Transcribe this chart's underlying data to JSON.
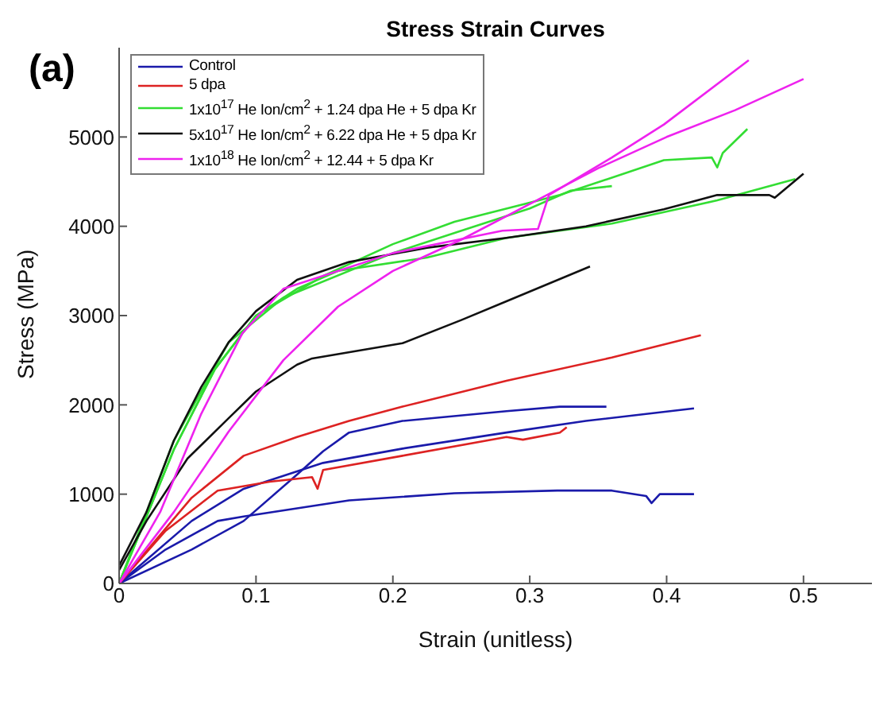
{
  "chart_data": {
    "type": "line",
    "title": "Stress Strain Curves",
    "xlabel": "Strain (unitless)",
    "ylabel": "Stress (MPa)",
    "annotations": [
      "(a)"
    ],
    "xlim": [
      0,
      0.55
    ],
    "xticks": [
      0,
      0.1,
      0.2,
      0.3,
      0.4,
      0.5
    ],
    "ylim": [
      0,
      6000
    ],
    "yticks": [
      0,
      1000,
      2000,
      3000,
      4000,
      5000
    ],
    "grid": false,
    "legend": "top left",
    "marker": "none",
    "line_style": "solid",
    "series": [
      {
        "name": "Control",
        "color": "#1a1aaa",
        "x": [
          0,
          0.034,
          0.072,
          0.091,
          0.168,
          0.245,
          0.32,
          0.36,
          0.385,
          0.389,
          0.395,
          0.42
        ],
        "values": [
          0,
          380,
          700,
          750,
          930,
          1010,
          1040,
          1040,
          980,
          900,
          1000,
          1000
        ]
      },
      {
        "color": "#1a1aaa",
        "x": [
          0,
          0.053,
          0.091,
          0.149,
          0.207,
          0.283,
          0.341,
          0.42
        ],
        "values": [
          0,
          700,
          1060,
          1350,
          1510,
          1690,
          1820,
          1960
        ]
      },
      {
        "color": "#1a1aaa",
        "x": [
          0,
          0.053,
          0.091,
          0.13,
          0.149,
          0.168,
          0.207,
          0.283,
          0.322,
          0.356
        ],
        "values": [
          0,
          380,
          700,
          1220,
          1480,
          1690,
          1820,
          1930,
          1980,
          1980
        ]
      },
      {
        "name": "5 dpa",
        "color": "#dd2222",
        "x": [
          0,
          0.053,
          0.091,
          0.13,
          0.168,
          0.207,
          0.283,
          0.36,
          0.425
        ],
        "values": [
          0,
          960,
          1430,
          1640,
          1820,
          1980,
          2270,
          2530,
          2780
        ]
      },
      {
        "color": "#dd2222",
        "x": [
          0,
          0.034,
          0.072,
          0.11,
          0.141,
          0.145,
          0.149,
          0.207,
          0.283,
          0.295,
          0.322,
          0.327
        ],
        "values": [
          0,
          590,
          1040,
          1140,
          1190,
          1060,
          1270,
          1430,
          1640,
          1610,
          1690,
          1750
        ]
      },
      {
        "name": "1x10$^{17}$ He Ion/cm$^{2}$ + 1.24 dpa He + 5 dpa Kr",
        "color": "#33dd33",
        "x": [
          0,
          0.04,
          0.07,
          0.1,
          0.15,
          0.2,
          0.245,
          0.322,
          0.398,
          0.433,
          0.437,
          0.441,
          0.459
        ],
        "values": [
          0,
          1500,
          2400,
          3000,
          3450,
          3800,
          4050,
          4350,
          4740,
          4770,
          4660,
          4820,
          5090
        ]
      },
      {
        "color": "#33dd33",
        "x": [
          0,
          0.04,
          0.07,
          0.1,
          0.13,
          0.16,
          0.225,
          0.283,
          0.36,
          0.437,
          0.494
        ],
        "values": [
          0,
          1500,
          2400,
          3000,
          3300,
          3500,
          3650,
          3870,
          4030,
          4290,
          4530
        ]
      },
      {
        "color": "#33dd33",
        "x": [
          0,
          0.04,
          0.08,
          0.12,
          0.2,
          0.25,
          0.3,
          0.33,
          0.36
        ],
        "values": [
          0,
          1600,
          2700,
          3200,
          3700,
          3950,
          4200,
          4400,
          4450
        ]
      },
      {
        "name": "5x10$^{17}$ He Ion/cm$^{2}$ + 6.22 dpa He + 5 dpa Kr",
        "color": "#111111",
        "x": [
          0,
          0.02,
          0.04,
          0.06,
          0.08,
          0.1,
          0.13,
          0.168,
          0.225,
          0.283,
          0.341,
          0.398,
          0.437,
          0.475,
          0.479,
          0.5
        ],
        "values": [
          200,
          800,
          1600,
          2200,
          2700,
          3050,
          3400,
          3600,
          3760,
          3870,
          4000,
          4190,
          4350,
          4350,
          4320,
          4590
        ]
      },
      {
        "color": "#111111",
        "x": [
          0,
          0.02,
          0.05,
          0.08,
          0.1,
          0.13,
          0.141,
          0.207,
          0.25,
          0.283,
          0.344
        ],
        "values": [
          150,
          700,
          1400,
          1850,
          2150,
          2450,
          2520,
          2690,
          2950,
          3160,
          3550
        ]
      },
      {
        "name": "1x10$^{18}$ He Ion/cm$^{2}$ + 12.44 + 5 dpa Kr",
        "color": "#ee22ee",
        "x": [
          0,
          0.03,
          0.06,
          0.09,
          0.12,
          0.2,
          0.28,
          0.306,
          0.314,
          0.36,
          0.398,
          0.46
        ],
        "values": [
          0,
          800,
          1900,
          2800,
          3300,
          3700,
          3950,
          3970,
          4350,
          4770,
          5140,
          5860
        ]
      },
      {
        "color": "#ee22ee",
        "x": [
          0,
          0.04,
          0.08,
          0.12,
          0.16,
          0.2,
          0.25,
          0.3,
          0.35,
          0.4,
          0.45,
          0.5
        ],
        "values": [
          0,
          800,
          1700,
          2500,
          3100,
          3500,
          3850,
          4250,
          4650,
          5000,
          5300,
          5650
        ]
      }
    ]
  }
}
